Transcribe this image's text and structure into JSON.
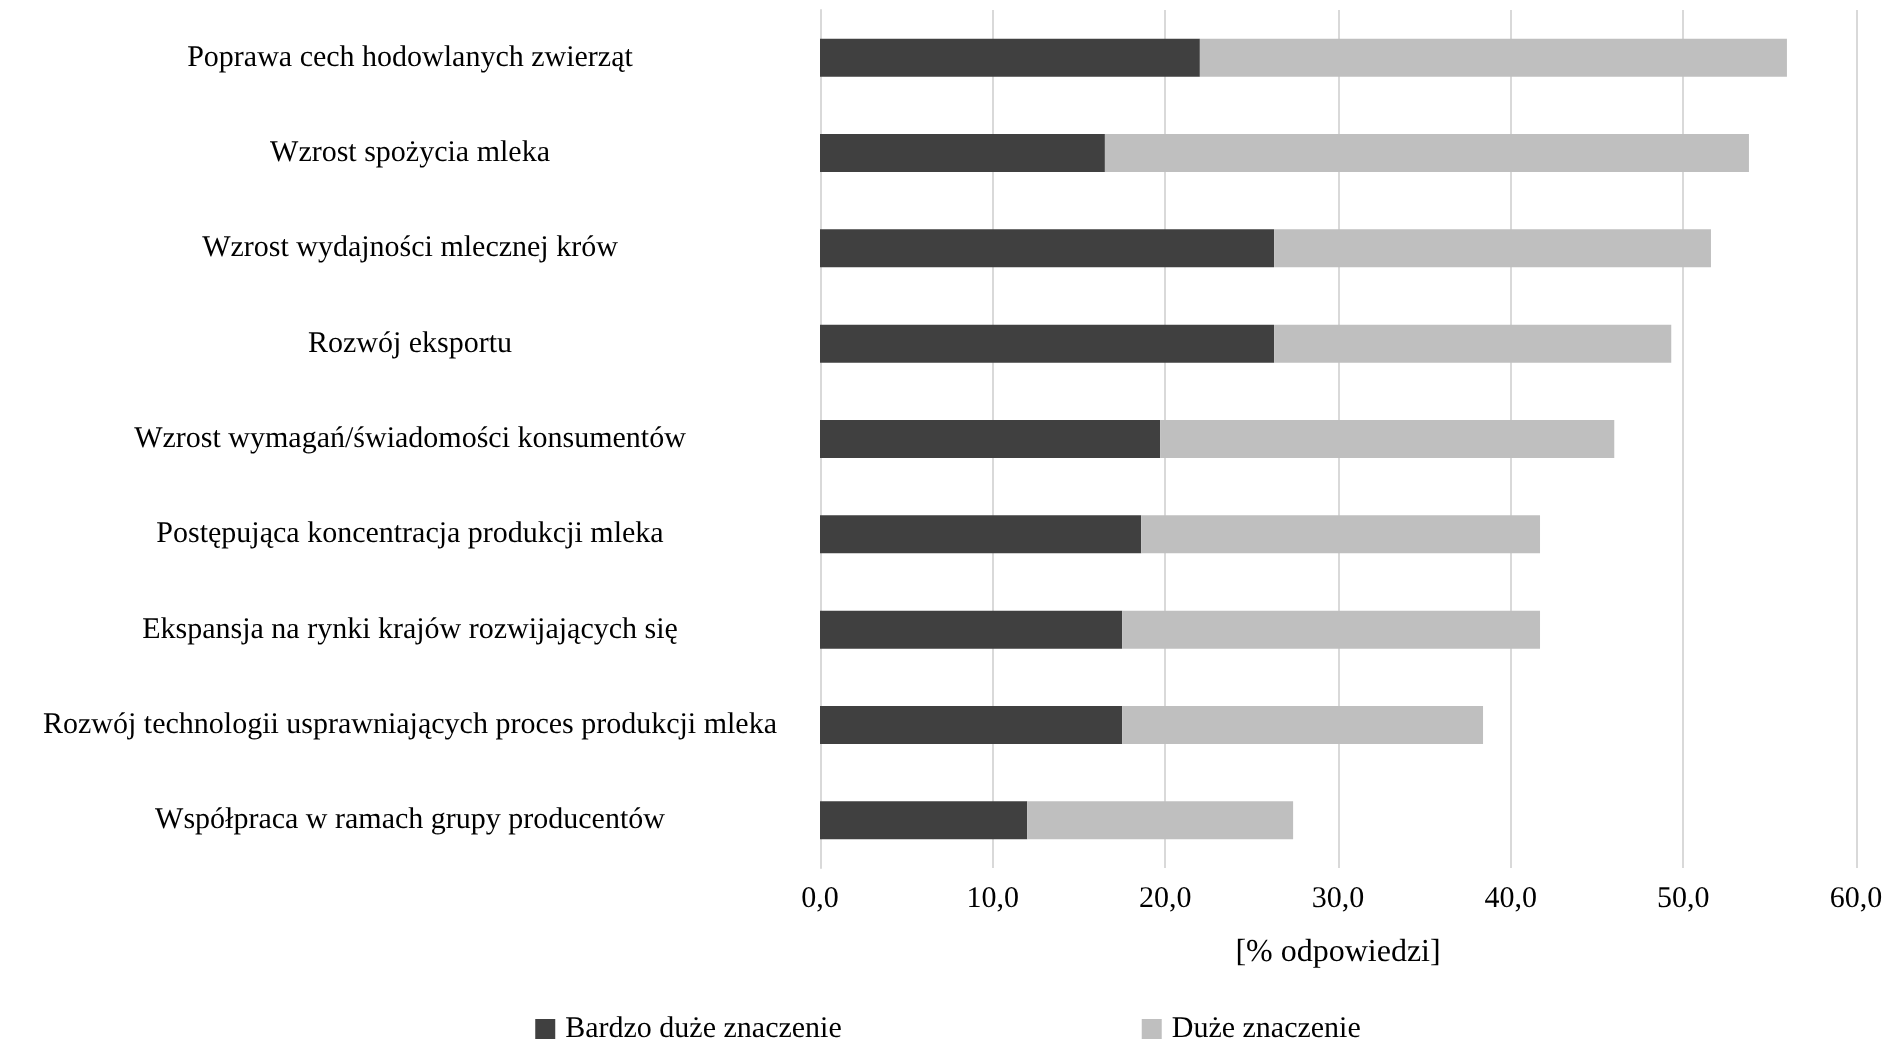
{
  "chart_data": {
    "type": "bar",
    "orientation": "horizontal",
    "stacked": true,
    "xlabel": "[% odpowiedzi]",
    "categories": [
      "Poprawa cech hodowlanych zwierząt",
      "Wzrost spożycia mleka",
      "Wzrost wydajności mlecznej krów",
      "Rozwój eksportu",
      "Wzrost wymagań/świadomości konsumentów",
      "Postępująca koncentracja produkcji mleka",
      "Ekspansja na rynki krajów rozwijających się",
      "Rozwój technologii usprawniających proces produkcji mleka",
      "Współpraca w ramach grupy producentów"
    ],
    "series": [
      {
        "name": "Bardzo duże znaczenie",
        "color": "#404040",
        "values": [
          22.0,
          16.5,
          26.3,
          26.3,
          19.7,
          18.6,
          17.5,
          17.5,
          12.0
        ]
      },
      {
        "name": "Duże znaczenie",
        "color": "#bfbfbf",
        "values": [
          34.0,
          37.3,
          25.3,
          23.0,
          26.3,
          23.1,
          24.2,
          20.9,
          15.4
        ]
      }
    ],
    "xlim": [
      0,
      60
    ],
    "xticks": [
      {
        "value": 0,
        "label": "0,0"
      },
      {
        "value": 10,
        "label": "10,0"
      },
      {
        "value": 20,
        "label": "20,0"
      },
      {
        "value": 30,
        "label": "30,0"
      },
      {
        "value": 40,
        "label": "40,0"
      },
      {
        "value": 50,
        "label": "50,0"
      },
      {
        "value": 60,
        "label": "60,0"
      }
    ],
    "grid": "x",
    "legend": "bottom"
  }
}
